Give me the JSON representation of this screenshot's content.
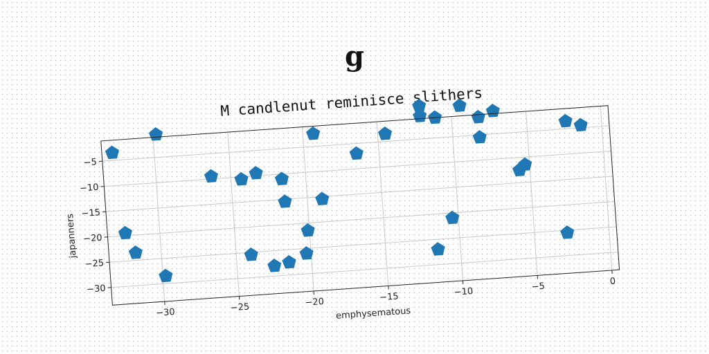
{
  "page": {
    "title": "g"
  },
  "chart_data": {
    "type": "scatter",
    "title": "M candlenut reminisce slithers",
    "xlabel": "emphysematous",
    "ylabel": "japanners",
    "xlim": [
      -33.5,
      0.5
    ],
    "ylim": [
      -33.5,
      -1
    ],
    "xticks": [
      -30,
      -25,
      -20,
      -15,
      -10,
      -5,
      0
    ],
    "yticks": [
      -5,
      -10,
      -15,
      -20,
      -25,
      -30
    ],
    "xtick_labels": [
      "−30",
      "−25",
      "−20",
      "−15",
      "−10",
      "−5",
      "0"
    ],
    "ytick_labels": [
      "−5",
      "−10",
      "−15",
      "−20",
      "−25",
      "−30"
    ],
    "grid": true,
    "marker": "pentagon",
    "color": "#1f77b4",
    "series": [
      {
        "x": [
          -32.8,
          -29.8,
          -32.3,
          -31.7,
          -29.8,
          -26.3,
          -24.3,
          -23.3,
          -24.0,
          -22.5,
          -21.6,
          -21.5,
          -21.5,
          -19.3,
          -19.0,
          -20.1,
          -20.3,
          -16.5,
          -14.5,
          -12.1,
          -12.1,
          -11.1,
          -11.5,
          -10.4,
          -9.4,
          -8.2,
          -8.2,
          -7.2,
          -5.7,
          -5.3,
          -2.4,
          -1.4,
          -2.8
        ],
        "y": [
          -3.5,
          -0.5,
          -19.5,
          -23.5,
          -28.5,
          -9.5,
          -10.5,
          -9.5,
          -25.5,
          -28.0,
          -11.0,
          -15.5,
          -27.5,
          -2.5,
          -15.5,
          -21.5,
          -26.0,
          -7.0,
          -3.5,
          1.5,
          -0.5,
          -1.0,
          -27.0,
          -21.0,
          1.0,
          -1.5,
          -5.5,
          -0.5,
          -12.5,
          -11.5,
          -3.5,
          -4.5,
          -25.5
        ]
      }
    ]
  }
}
